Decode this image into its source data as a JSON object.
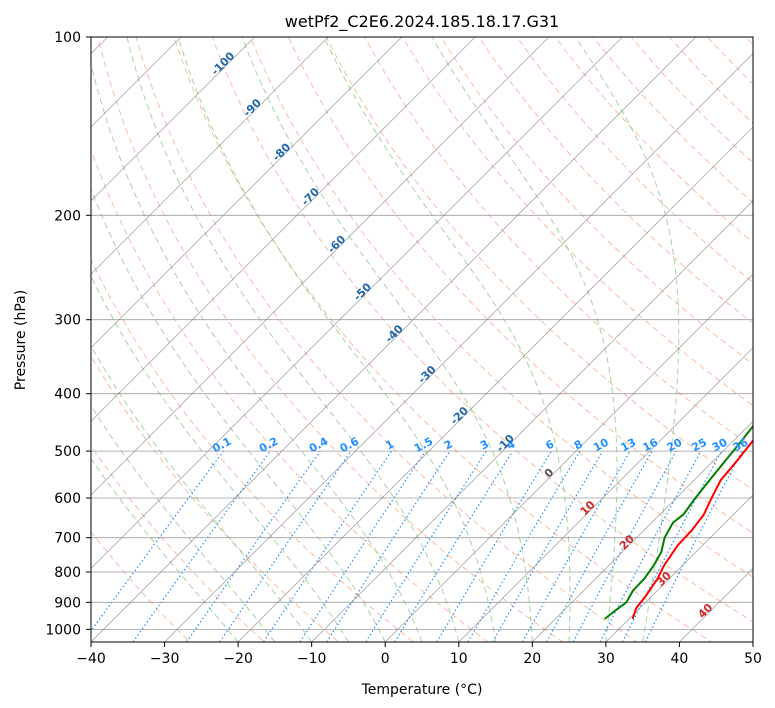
{
  "chart_data": {
    "type": "line",
    "subtype": "skew-t log-p diagram",
    "title": "wetPf2_C2E6.2024.185.18.17.G31",
    "xlabel": "Temperature (°C)",
    "ylabel": "Pressure (hPa)",
    "xlim": [
      -40,
      50
    ],
    "ylim": [
      1050,
      100
    ],
    "x_ticks": [
      "−40",
      "−30",
      "−20",
      "−10",
      "0",
      "10",
      "20",
      "30",
      "40",
      "50"
    ],
    "y_ticks": [
      "100",
      "200",
      "300",
      "400",
      "500",
      "600",
      "700",
      "800",
      "900",
      "1000"
    ],
    "y_tick_values": [
      100,
      200,
      300,
      400,
      500,
      600,
      700,
      800,
      900,
      1000
    ],
    "grid": true,
    "colors": {
      "temperature": "#ff0000",
      "dewpoint": "#008000",
      "dry_adiabat": "#f4a582",
      "moist_adiabat": "#7fbf7f",
      "mixing_ratio": "#1e90ff",
      "isotherm": "#808080",
      "isotherm_label": "#2166ac",
      "positive_label": "#d62728",
      "zero_label": "#555555"
    },
    "series": [
      {
        "name": "Temperature",
        "color": "#ff0000",
        "points": [
          {
            "p": 960,
            "t": 30.5
          },
          {
            "p": 920,
            "t": 29.5
          },
          {
            "p": 880,
            "t": 29.2
          },
          {
            "p": 820,
            "t": 28.4
          },
          {
            "p": 780,
            "t": 27.5
          },
          {
            "p": 720,
            "t": 26.6
          },
          {
            "p": 680,
            "t": 26.5
          },
          {
            "p": 640,
            "t": 26.0
          },
          {
            "p": 600,
            "t": 24.8
          },
          {
            "p": 560,
            "t": 23.6
          },
          {
            "p": 520,
            "t": 23.2
          },
          {
            "p": 480,
            "t": 22.6
          },
          {
            "p": 440,
            "t": 21.9
          },
          {
            "p": 400,
            "t": 20.4
          },
          {
            "p": 370,
            "t": 18.9
          },
          {
            "p": 340,
            "t": 17.4
          },
          {
            "p": 310,
            "t": 15.8
          },
          {
            "p": 280,
            "t": 14.0
          },
          {
            "p": 250,
            "t": 11.7
          },
          {
            "p": 220,
            "t": 8.6
          },
          {
            "p": 200,
            "t": 6.1
          },
          {
            "p": 180,
            "t": 3.4
          },
          {
            "p": 160,
            "t": 0.7
          },
          {
            "p": 145,
            "t": -1.3
          },
          {
            "p": 130,
            "t": -3.1
          },
          {
            "p": 118,
            "t": -4.3
          },
          {
            "p": 108,
            "t": -4.9
          },
          {
            "p": 100,
            "t": -5.4
          }
        ]
      },
      {
        "name": "Dewpoint",
        "color": "#008000",
        "points": [
          {
            "p": 960,
            "t": 26.7
          },
          {
            "p": 930,
            "t": 27.0
          },
          {
            "p": 900,
            "t": 27.4
          },
          {
            "p": 860,
            "t": 26.7
          },
          {
            "p": 820,
            "t": 26.6
          },
          {
            "p": 780,
            "t": 26.1
          },
          {
            "p": 740,
            "t": 25.3
          },
          {
            "p": 700,
            "t": 23.8
          },
          {
            "p": 660,
            "t": 22.9
          },
          {
            "p": 640,
            "t": 23.2
          },
          {
            "p": 600,
            "t": 22.6
          },
          {
            "p": 560,
            "t": 22.1
          },
          {
            "p": 520,
            "t": 21.6
          },
          {
            "p": 480,
            "t": 21.1
          },
          {
            "p": 440,
            "t": 20.4
          },
          {
            "p": 400,
            "t": 18.7
          },
          {
            "p": 370,
            "t": 16.4
          },
          {
            "p": 350,
            "t": 15.8
          },
          {
            "p": 330,
            "t": 15.3
          },
          {
            "p": 300,
            "t": 13.3
          },
          {
            "p": 275,
            "t": 11.2
          },
          {
            "p": 255,
            "t": 8.6
          },
          {
            "p": 235,
            "t": 6.7
          },
          {
            "p": 215,
            "t": 4.8
          },
          {
            "p": 195,
            "t": 3.1
          },
          {
            "p": 175,
            "t": 0.9
          },
          {
            "p": 160,
            "t": -2.1
          },
          {
            "p": 145,
            "t": -5.6
          },
          {
            "p": 135,
            "t": -8.6
          },
          {
            "p": 128,
            "t": -10.3
          },
          {
            "p": 122,
            "t": -10.1
          },
          {
            "p": 115,
            "t": -7.3
          },
          {
            "p": 108,
            "t": -5.9
          },
          {
            "p": 100,
            "t": -5.7
          }
        ]
      }
    ],
    "dry_adiabats_C": [
      -30,
      -20,
      -10,
      0,
      10,
      20,
      30,
      40,
      50,
      60,
      70,
      80,
      90,
      100,
      110,
      120,
      130,
      140,
      150,
      160,
      170,
      180,
      190,
      200
    ],
    "moist_adiabats_C": [
      -20,
      -15,
      -10,
      -5,
      0,
      5,
      10,
      15,
      20,
      25,
      30,
      35
    ],
    "mixing_ratio_lines": [
      "0.1",
      "0.2",
      "0.4",
      "0.6",
      "1",
      "1.5",
      "2",
      "3",
      "4",
      "6",
      "8",
      "10",
      "13",
      "16",
      "20",
      "25",
      "30",
      "36"
    ],
    "isotherm_labels": [
      "-100",
      "-90",
      "-80",
      "-70",
      "-60",
      "-50",
      "-40",
      "-30",
      "-20",
      "-10",
      "0",
      "10",
      "20",
      "30",
      "40"
    ],
    "isotherm_label_points": [
      {
        "label": "-100",
        "t": -100,
        "p": 112
      },
      {
        "label": "-90",
        "t": -90,
        "p": 133
      },
      {
        "label": "-80",
        "t": -80,
        "p": 158
      },
      {
        "label": "-70",
        "t": -70,
        "p": 188
      },
      {
        "label": "-60",
        "t": -60,
        "p": 226
      },
      {
        "label": "-50",
        "t": -50,
        "p": 272
      },
      {
        "label": "-40",
        "t": -40,
        "p": 320
      },
      {
        "label": "-30",
        "t": -30,
        "p": 375
      },
      {
        "label": "-20",
        "t": -20,
        "p": 440
      },
      {
        "label": "-10",
        "t": -10,
        "p": 490
      },
      {
        "label": "0",
        "t": 0,
        "p": 550
      },
      {
        "label": "10",
        "t": 10,
        "p": 630
      },
      {
        "label": "20",
        "t": 20,
        "p": 720
      },
      {
        "label": "30",
        "t": 30,
        "p": 830
      },
      {
        "label": "40",
        "t": 40,
        "p": 940
      }
    ]
  }
}
